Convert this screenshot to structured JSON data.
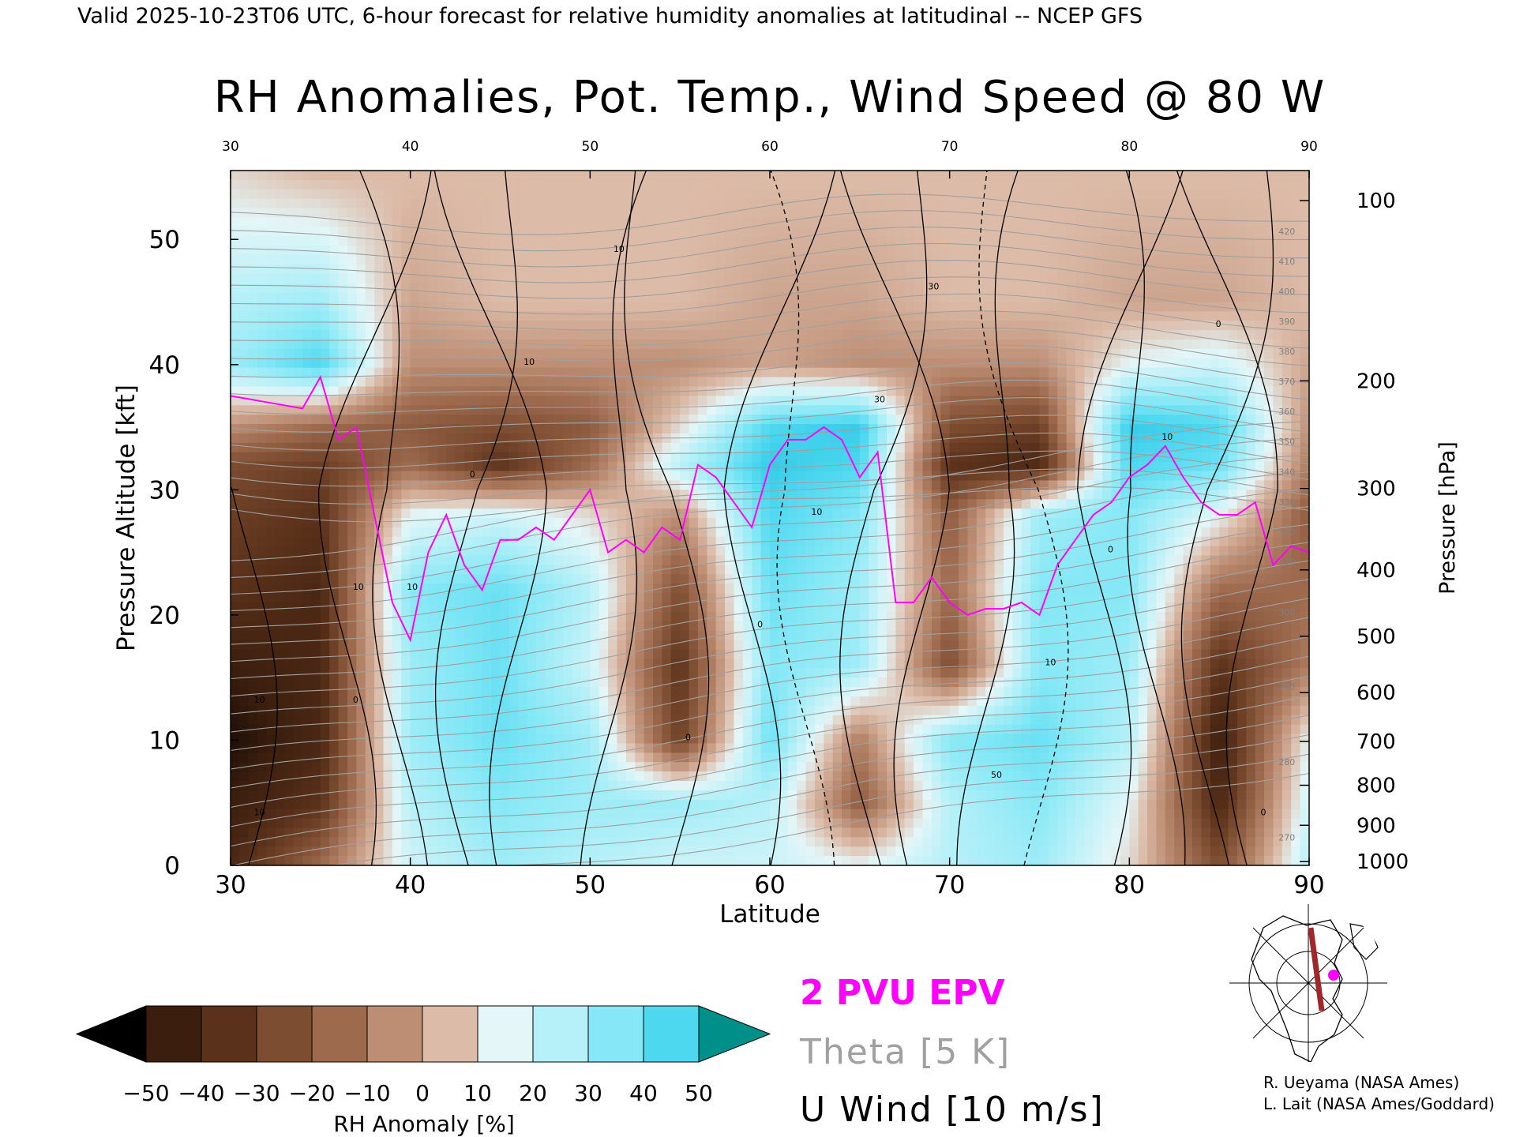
{
  "header": {
    "valid_text": "Valid 2025-10-23T06 UTC, 6-hour forecast for relative humidity anomalies at latitudinal -- NCEP GFS"
  },
  "chart_data": {
    "type": "heatmap",
    "title": "RH Anomalies, Pot. Temp., Wind Speed @ 80 W",
    "xlabel": "Latitude",
    "ylabel": "Pressure Altitude [kft]",
    "ylabel_right": "Pressure [hPa]",
    "xlim": [
      30,
      90
    ],
    "ylim": [
      0,
      55.5
    ],
    "x_ticks": [
      "30",
      "40",
      "50",
      "60",
      "70",
      "80",
      "90"
    ],
    "y_ticks": [
      "0",
      "10",
      "20",
      "30",
      "40",
      "50"
    ],
    "pressure_ticks": [
      {
        "label": "100",
        "kft": 53.1
      },
      {
        "label": "200",
        "kft": 38.7
      },
      {
        "label": "300",
        "kft": 30.1
      },
      {
        "label": "400",
        "kft": 23.6
      },
      {
        "label": "500",
        "kft": 18.3
      },
      {
        "label": "600",
        "kft": 13.8
      },
      {
        "label": "700",
        "kft": 9.9
      },
      {
        "label": "800",
        "kft": 6.4
      },
      {
        "label": "900",
        "kft": 3.2
      },
      {
        "label": "1000",
        "kft": 0.3
      }
    ],
    "rh_anomaly_grid": {
      "lat": [
        30,
        35,
        40,
        45,
        50,
        55,
        60,
        65,
        70,
        75,
        80,
        85,
        90
      ],
      "kft": [
        55,
        45,
        40,
        35,
        32,
        28,
        22,
        16,
        10,
        5,
        0
      ],
      "values": [
        [
          5,
          0,
          0,
          0,
          0,
          0,
          0,
          0,
          0,
          0,
          0,
          0,
          0
        ],
        [
          20,
          25,
          -5,
          0,
          0,
          0,
          -5,
          -5,
          0,
          0,
          -5,
          -5,
          0
        ],
        [
          25,
          40,
          -10,
          -10,
          -10,
          -10,
          -5,
          -10,
          -10,
          -10,
          10,
          15,
          -5
        ],
        [
          -10,
          -20,
          -25,
          -30,
          -25,
          5,
          40,
          45,
          -30,
          -35,
          45,
          40,
          -10
        ],
        [
          -30,
          -35,
          -20,
          -40,
          -20,
          20,
          45,
          40,
          -40,
          -45,
          40,
          35,
          -15
        ],
        [
          -35,
          -40,
          10,
          15,
          5,
          -10,
          40,
          30,
          -25,
          25,
          30,
          10,
          -25
        ],
        [
          -40,
          -45,
          30,
          35,
          20,
          -30,
          35,
          25,
          -20,
          30,
          30,
          -20,
          -20
        ],
        [
          -50,
          -45,
          25,
          35,
          15,
          -40,
          30,
          25,
          -30,
          30,
          25,
          -40,
          -15
        ],
        [
          -55,
          -45,
          25,
          35,
          25,
          -35,
          35,
          -15,
          30,
          35,
          20,
          -50,
          10
        ],
        [
          -50,
          -40,
          20,
          30,
          25,
          25,
          20,
          -25,
          20,
          30,
          10,
          -45,
          15
        ],
        [
          -45,
          -20,
          15,
          25,
          20,
          15,
          15,
          10,
          20,
          25,
          5,
          -30,
          20
        ]
      ]
    },
    "epv_2pvu_line": {
      "lat": [
        30,
        32,
        34,
        35,
        36,
        37,
        38,
        39,
        40,
        41,
        42,
        43,
        44,
        45,
        46,
        47,
        48,
        49,
        50,
        51,
        52,
        53,
        54,
        55,
        56,
        57,
        58,
        59,
        60,
        61,
        62,
        63,
        64,
        65,
        66,
        67,
        68,
        69,
        70,
        71,
        72,
        73,
        74,
        75,
        76,
        77,
        78,
        79,
        80,
        81,
        82,
        83,
        84,
        85,
        86,
        87,
        88,
        89,
        90
      ],
      "kft": [
        37.5,
        37,
        36.5,
        39,
        34,
        35,
        28,
        21,
        18,
        25,
        28,
        24,
        22,
        26,
        26,
        27,
        26,
        28,
        30,
        25,
        26,
        25,
        27,
        26,
        32,
        31,
        29,
        27,
        32,
        34,
        34,
        35,
        34,
        31,
        33,
        21,
        21,
        23,
        21,
        20,
        20.5,
        20.5,
        21,
        20,
        24,
        26,
        28,
        29,
        31,
        32,
        33.5,
        31,
        29,
        28,
        28,
        29,
        24,
        25.5,
        25
      ]
    },
    "theta_contours_K": [
      270,
      280,
      290,
      300,
      310,
      320,
      330,
      340,
      350,
      360,
      370,
      380,
      390,
      400,
      410,
      420
    ],
    "theta_labels": [
      "270",
      "280",
      "290",
      "300",
      "310",
      "320",
      "330",
      "340",
      "350",
      "360",
      "370",
      "380",
      "390",
      "400",
      "410",
      "420"
    ],
    "u_wind_contours": {
      "interval_ms": 10,
      "labels": [
        "10",
        "0",
        "10",
        "0",
        "10",
        "10",
        "0",
        "0",
        "10",
        "30",
        "30",
        "50",
        "10",
        "0",
        "10",
        "0",
        "0",
        "10",
        "10"
      ]
    },
    "legend": [
      {
        "label": "2 PVU EPV",
        "color": "#ff00ff"
      },
      {
        "label": "Theta [5 K]",
        "color": "#a0a0a0"
      },
      {
        "label": "U Wind [10 m/s]",
        "color": "#000000"
      }
    ],
    "colorbar": {
      "label": "RH Anomaly [%]",
      "tick_labels": [
        "−50",
        "−40",
        "−30",
        "−20",
        "−10",
        "0",
        "10",
        "20",
        "30",
        "40",
        "50"
      ],
      "colors": [
        "#3b1e0e",
        "#5a311a",
        "#7d4d31",
        "#9d6a4e",
        "#bd8e74",
        "#dcbba8",
        "#e4f6f8",
        "#b6f0f8",
        "#86e8f6",
        "#4ed8f0",
        "#1fbde0",
        "#0ea0c8",
        "#008f96"
      ],
      "under_color": "#000000",
      "over_color": "#00908a"
    },
    "colors": {
      "epv": "#ff00ff",
      "theta": "#a0a0a0",
      "u_wind": "#000000",
      "cross_section_line": "#a0282a",
      "marker": "#ff00ff"
    }
  },
  "credits": {
    "line1": "R. Ueyama (NASA Ames)",
    "line2": "L. Lait (NASA Ames/Goddard)"
  },
  "inset_map": {
    "description_icon": "globe-map-icon"
  }
}
